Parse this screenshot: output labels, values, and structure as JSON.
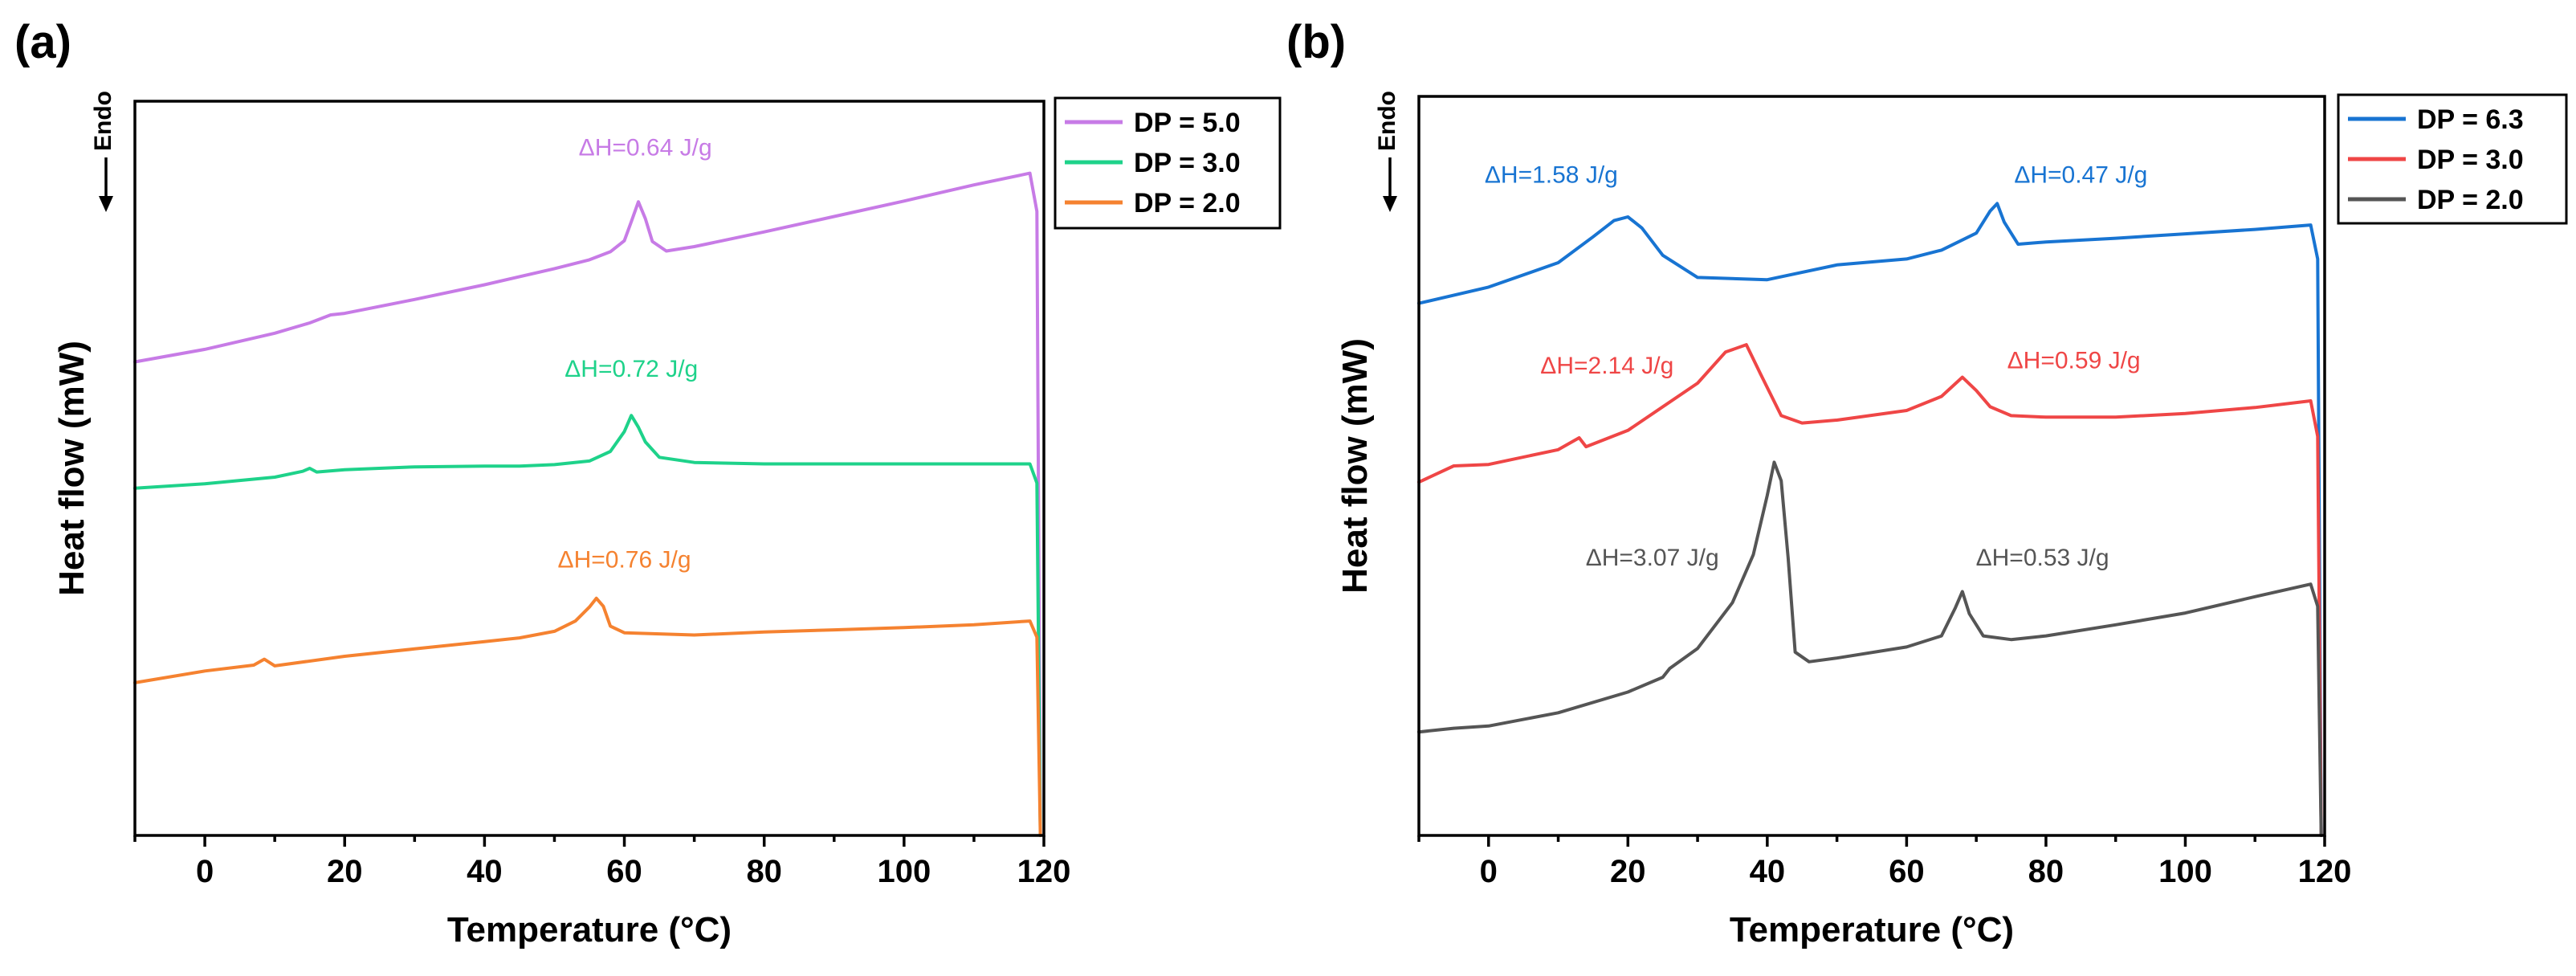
{
  "chart_data": [
    {
      "panel": "(a)",
      "type": "line",
      "xlabel": "Temperature (°C)",
      "ylabel": "Heat flow (mW)",
      "endo_label": "Endo",
      "xlim": [
        -10,
        120
      ],
      "xticks": [
        "0",
        "20",
        "40",
        "60",
        "80",
        "100",
        "120"
      ],
      "xtick_values": [
        0,
        20,
        40,
        60,
        80,
        100,
        120
      ],
      "ylim": [
        0,
        100
      ],
      "grid": false,
      "legend_position": "outside top-right",
      "legend": [
        "DP = 5.0",
        "DP = 3.0",
        "DP = 2.0"
      ],
      "series": [
        {
          "name": "DP = 5.0",
          "color": "#c77be6",
          "x": [
            -10,
            0,
            10,
            15,
            18,
            20,
            30,
            40,
            50,
            55,
            58,
            60,
            61,
            62,
            63,
            64,
            66,
            70,
            80,
            90,
            100,
            110,
            118,
            119,
            119.5
          ],
          "y": [
            64.5,
            66.2,
            68.4,
            69.8,
            70.9,
            71.1,
            73.0,
            75.0,
            77.2,
            78.4,
            79.5,
            81.0,
            83.6,
            86.3,
            84.0,
            80.9,
            79.6,
            80.2,
            82.2,
            84.3,
            86.4,
            88.6,
            90.2,
            85.0,
            0
          ],
          "annotation": {
            "text": "ΔH=0.64 J/g",
            "x": 63,
            "y": 92.6
          }
        },
        {
          "name": "DP = 3.0",
          "color": "#1ed28a",
          "x": [
            -10,
            0,
            10,
            14,
            15,
            16,
            20,
            30,
            40,
            45,
            50,
            55,
            58,
            60,
            61,
            62,
            63,
            65,
            70,
            80,
            90,
            100,
            110,
            118,
            119,
            119.5
          ],
          "y": [
            47.3,
            47.9,
            48.8,
            49.6,
            50.0,
            49.5,
            49.8,
            50.2,
            50.3,
            50.3,
            50.5,
            51.0,
            52.3,
            55.0,
            57.2,
            55.6,
            53.6,
            51.5,
            50.8,
            50.6,
            50.6,
            50.6,
            50.6,
            50.6,
            48.0,
            0
          ],
          "annotation": {
            "text": "ΔH=0.72 J/g",
            "x": 61,
            "y": 62.5
          }
        },
        {
          "name": "DP = 2.0",
          "color": "#f58230",
          "x": [
            -10,
            0,
            7,
            8.5,
            10,
            20,
            30,
            40,
            45,
            50,
            53,
            55,
            56,
            57,
            58,
            60,
            70,
            80,
            90,
            100,
            110,
            118,
            119,
            119.5
          ],
          "y": [
            20.8,
            22.4,
            23.2,
            24.0,
            23.1,
            24.4,
            25.4,
            26.4,
            26.9,
            27.8,
            29.2,
            31.1,
            32.3,
            31.2,
            28.5,
            27.6,
            27.3,
            27.7,
            28.0,
            28.3,
            28.7,
            29.2,
            27.0,
            0
          ],
          "annotation": {
            "text": "ΔH=0.76 J/g",
            "x": 60,
            "y": 36.5
          }
        }
      ]
    },
    {
      "panel": "(b)",
      "type": "line",
      "xlabel": "Temperature (°C)",
      "ylabel": "Heat flow (mW)",
      "endo_label": "Endo",
      "xlim": [
        -10,
        120
      ],
      "xticks": [
        "0",
        "20",
        "40",
        "60",
        "80",
        "100",
        "120"
      ],
      "xtick_values": [
        0,
        20,
        40,
        60,
        80,
        100,
        120
      ],
      "ylim": [
        0,
        100
      ],
      "grid": false,
      "legend_position": "outside top-right",
      "legend": [
        "DP = 6.3",
        "DP = 3.0",
        "DP = 2.0"
      ],
      "series": [
        {
          "name": "DP = 6.3",
          "color": "#1874d2",
          "x": [
            -10,
            0,
            10,
            15,
            18,
            20,
            22,
            25,
            30,
            40,
            50,
            60,
            65,
            70,
            72,
            73,
            74,
            76,
            80,
            90,
            100,
            110,
            118,
            119,
            119.5
          ],
          "y": [
            72.0,
            74.2,
            77.5,
            81.0,
            83.2,
            83.7,
            82.2,
            78.5,
            75.5,
            75.2,
            77.2,
            78.0,
            79.2,
            81.5,
            84.5,
            85.5,
            83.0,
            80.0,
            80.3,
            80.8,
            81.4,
            82.0,
            82.6,
            78.0,
            0
          ],
          "annotation": {
            "text": "ΔH=1.58 J/g",
            "x": 9,
            "y": 88.3
          }
        },
        {
          "name": "DP = 3.0",
          "color": "#ef4646",
          "x": [
            -10,
            -5,
            0,
            10,
            13,
            14,
            20,
            30,
            34,
            37,
            39,
            42,
            45,
            50,
            60,
            65,
            68,
            70,
            72,
            75,
            80,
            90,
            100,
            110,
            118,
            119,
            119.5
          ],
          "y": [
            47.8,
            50.0,
            50.2,
            52.2,
            53.8,
            52.6,
            54.8,
            61.2,
            65.4,
            66.4,
            62.5,
            56.8,
            55.8,
            56.2,
            57.5,
            59.4,
            62.0,
            60.2,
            58.0,
            56.8,
            56.6,
            56.6,
            57.1,
            57.9,
            58.8,
            54.0,
            0
          ],
          "annotation": {
            "text": "ΔH=2.14 J/g",
            "x": 17,
            "y": 62.5
          }
        },
        {
          "name": "DP = 2.0",
          "color": "#555555",
          "x": [
            -10,
            -5,
            0,
            10,
            20,
            25,
            26,
            30,
            35,
            38,
            40,
            41,
            42,
            43,
            44,
            46,
            50,
            60,
            65,
            67,
            68,
            69,
            71,
            75,
            80,
            90,
            100,
            110,
            118,
            119,
            119.5
          ],
          "y": [
            14.0,
            14.5,
            14.8,
            16.6,
            19.4,
            21.4,
            22.6,
            25.3,
            31.5,
            38.0,
            46.0,
            50.5,
            48.0,
            37.5,
            24.8,
            23.5,
            24.0,
            25.5,
            27.0,
            30.8,
            33.0,
            30.0,
            27.0,
            26.5,
            27.0,
            28.5,
            30.1,
            32.3,
            34.0,
            31.0,
            0
          ],
          "annotation": {
            "text": "ΔH=3.07 J/g",
            "x": 23.5,
            "y": 36.5
          }
        }
      ],
      "extra_annotations": [
        {
          "text": "ΔH=0.47 J/g",
          "x": 85,
          "y": 88.3,
          "color": "#1874d2"
        },
        {
          "text": "ΔH=0.59 J/g",
          "x": 84,
          "y": 63.2,
          "color": "#ef4646"
        },
        {
          "text": "ΔH=0.53 J/g",
          "x": 79.5,
          "y": 36.5,
          "color": "#555555"
        }
      ]
    }
  ]
}
